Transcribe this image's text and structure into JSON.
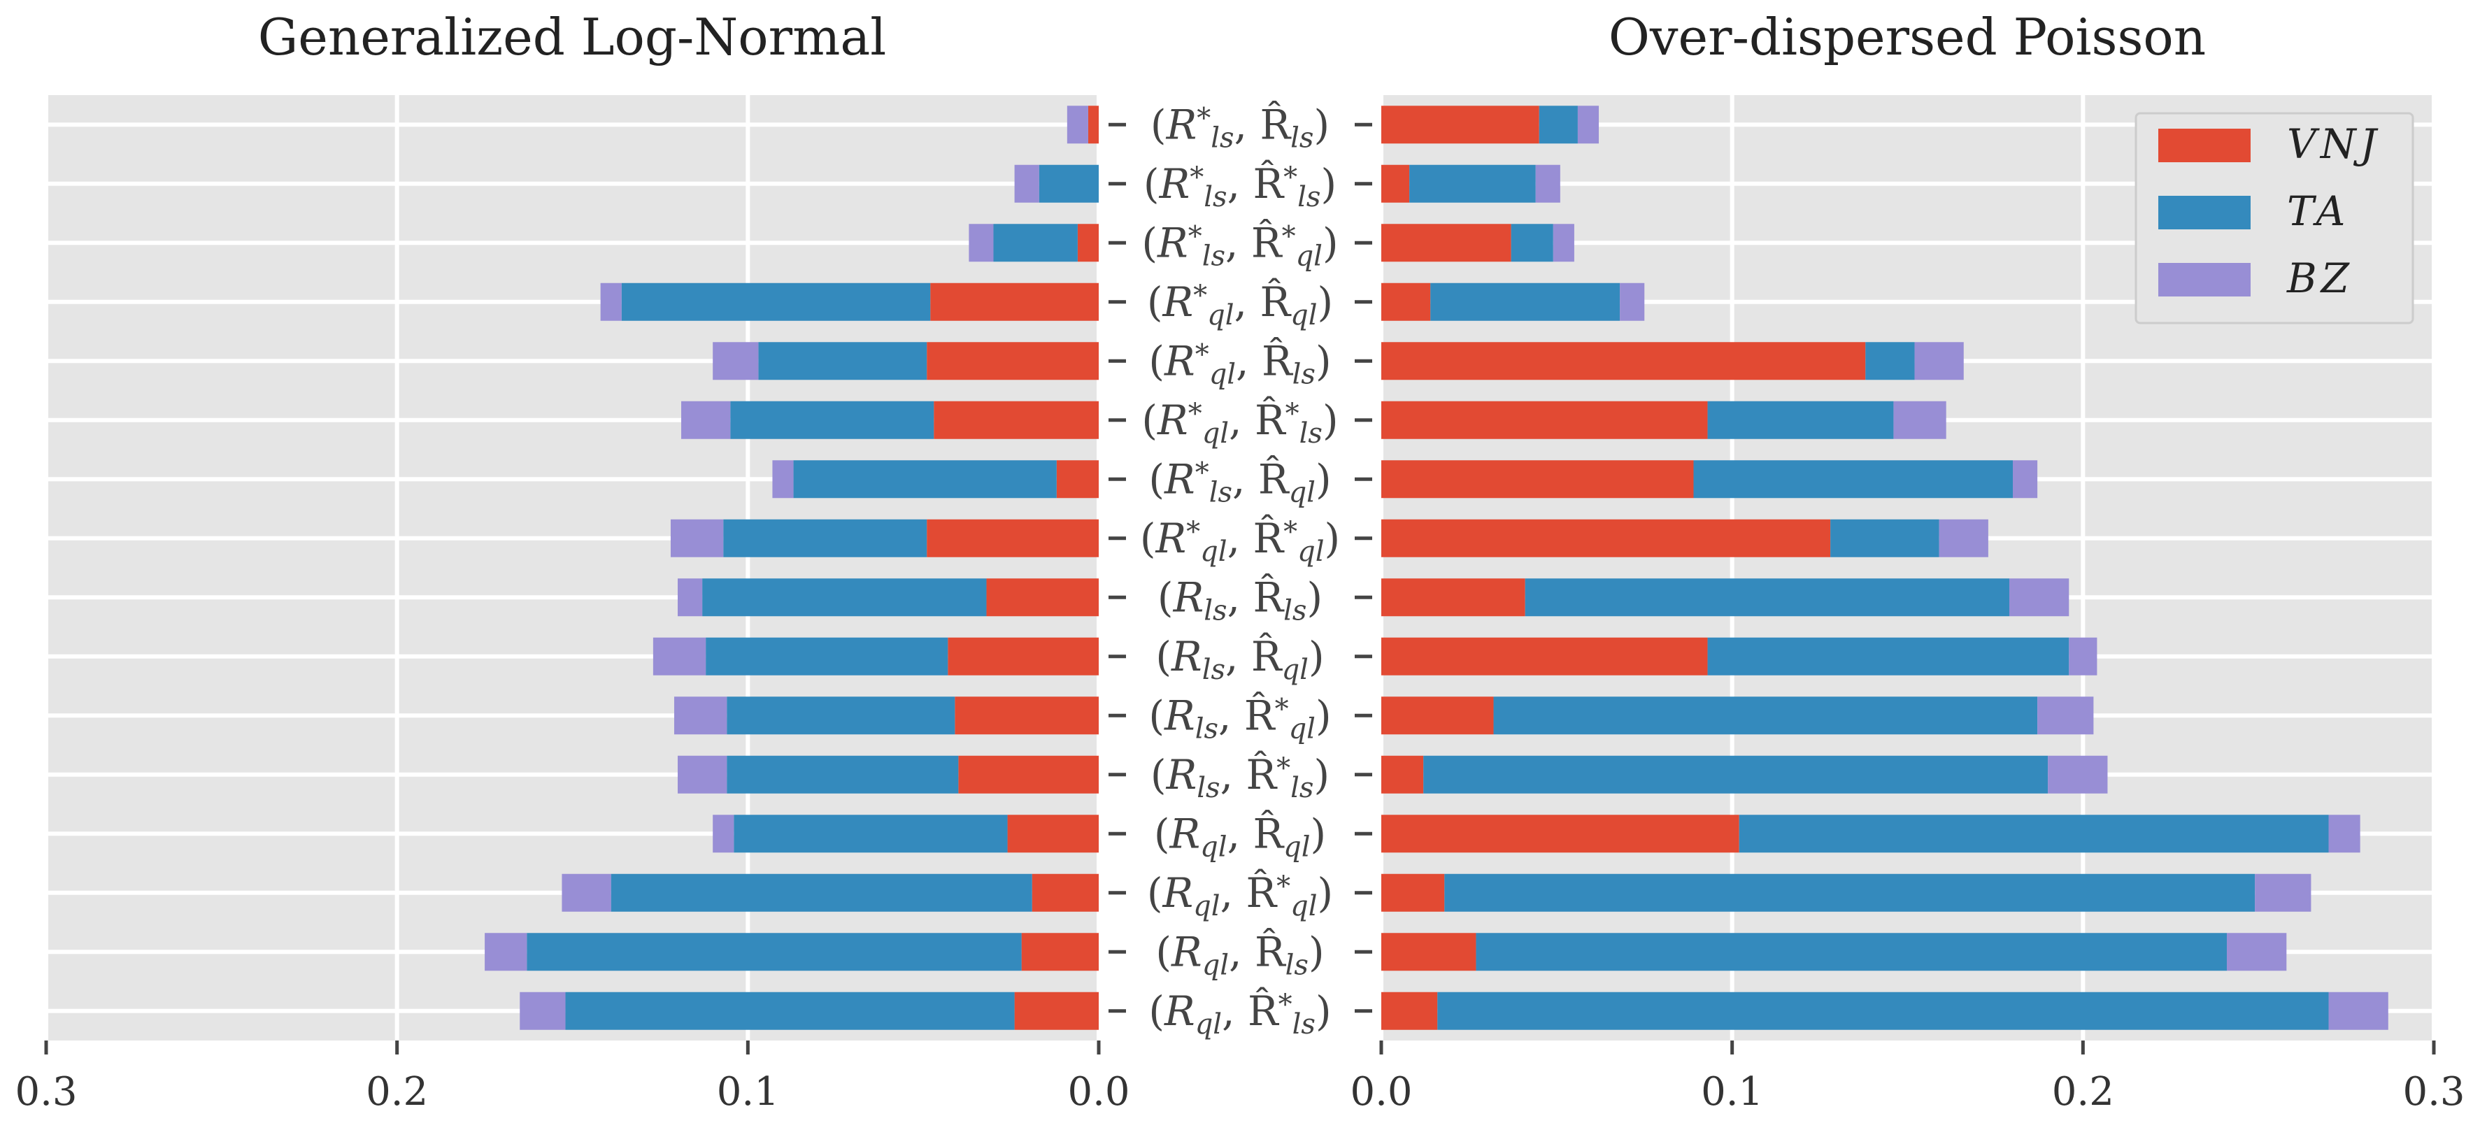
{
  "chart_data": {
    "type": "bar",
    "orientation": "horizontal",
    "stacked": true,
    "grid": true,
    "legend_position": "top-right",
    "colors": {
      "VNJ": "#e24a33",
      "TA": "#348abd",
      "BZ": "#988ed5",
      "panel_bg": "#e5e5e5",
      "grid": "#ffffff"
    },
    "categories": [
      {
        "main": "R",
        "main_sub": "ql",
        "main_star": false,
        "hat_sub": "ls",
        "hat_star": true
      },
      {
        "main": "R",
        "main_sub": "ql",
        "main_star": false,
        "hat_sub": "ls",
        "hat_star": false
      },
      {
        "main": "R",
        "main_sub": "ql",
        "main_star": false,
        "hat_sub": "ql",
        "hat_star": true
      },
      {
        "main": "R",
        "main_sub": "ql",
        "main_star": false,
        "hat_sub": "ql",
        "hat_star": false
      },
      {
        "main": "R",
        "main_sub": "ls",
        "main_star": false,
        "hat_sub": "ls",
        "hat_star": true
      },
      {
        "main": "R",
        "main_sub": "ls",
        "main_star": false,
        "hat_sub": "ql",
        "hat_star": true
      },
      {
        "main": "R",
        "main_sub": "ls",
        "main_star": false,
        "hat_sub": "ql",
        "hat_star": false
      },
      {
        "main": "R",
        "main_sub": "ls",
        "main_star": false,
        "hat_sub": "ls",
        "hat_star": false
      },
      {
        "main": "R",
        "main_sub": "ql",
        "main_star": true,
        "hat_sub": "ql",
        "hat_star": true
      },
      {
        "main": "R",
        "main_sub": "ls",
        "main_star": true,
        "hat_sub": "ql",
        "hat_star": false
      },
      {
        "main": "R",
        "main_sub": "ql",
        "main_star": true,
        "hat_sub": "ls",
        "hat_star": true
      },
      {
        "main": "R",
        "main_sub": "ql",
        "main_star": true,
        "hat_sub": "ls",
        "hat_star": false
      },
      {
        "main": "R",
        "main_sub": "ql",
        "main_star": true,
        "hat_sub": "ql",
        "hat_star": false
      },
      {
        "main": "R",
        "main_sub": "ls",
        "main_star": true,
        "hat_sub": "ql",
        "hat_star": true
      },
      {
        "main": "R",
        "main_sub": "ls",
        "main_star": true,
        "hat_sub": "ls",
        "hat_star": true
      },
      {
        "main": "R",
        "main_sub": "ls",
        "main_star": true,
        "hat_sub": "ls",
        "hat_star": false
      }
    ],
    "panels": [
      {
        "title": "Generalized Log-Normal",
        "direction": "left",
        "xlim": [
          0,
          0.3
        ],
        "xticks": [
          "0.3",
          "0.2",
          "0.1",
          "0.0"
        ],
        "series": [
          {
            "name": "VNJ",
            "values": [
              0.024,
              0.022,
              0.019,
              0.026,
              0.04,
              0.041,
              0.043,
              0.032,
              0.049,
              0.012,
              0.047,
              0.049,
              0.048,
              0.006,
              0.0,
              0.003
            ]
          },
          {
            "name": "TA",
            "values": [
              0.128,
              0.141,
              0.12,
              0.078,
              0.066,
              0.065,
              0.069,
              0.081,
              0.058,
              0.075,
              0.058,
              0.048,
              0.088,
              0.024,
              0.017,
              0.0
            ]
          },
          {
            "name": "BZ",
            "values": [
              0.013,
              0.012,
              0.014,
              0.006,
              0.014,
              0.015,
              0.015,
              0.007,
              0.015,
              0.006,
              0.014,
              0.013,
              0.006,
              0.007,
              0.007,
              0.006
            ]
          }
        ]
      },
      {
        "title": "Over-dispersed Poisson",
        "direction": "right",
        "xlim": [
          0,
          0.3
        ],
        "xticks": [
          "0.0",
          "0.1",
          "0.2",
          "0.3"
        ],
        "series": [
          {
            "name": "VNJ",
            "values": [
              0.016,
              0.027,
              0.018,
              0.102,
              0.012,
              0.032,
              0.093,
              0.041,
              0.128,
              0.089,
              0.093,
              0.138,
              0.014,
              0.037,
              0.008,
              0.045
            ]
          },
          {
            "name": "TA",
            "values": [
              0.254,
              0.214,
              0.231,
              0.168,
              0.178,
              0.155,
              0.103,
              0.138,
              0.031,
              0.091,
              0.053,
              0.014,
              0.054,
              0.012,
              0.036,
              0.011
            ]
          },
          {
            "name": "BZ",
            "values": [
              0.017,
              0.017,
              0.016,
              0.009,
              0.017,
              0.016,
              0.008,
              0.017,
              0.014,
              0.007,
              0.015,
              0.014,
              0.007,
              0.006,
              0.007,
              0.006
            ]
          }
        ]
      }
    ],
    "legend": [
      "VNJ",
      "TA",
      "BZ"
    ]
  }
}
